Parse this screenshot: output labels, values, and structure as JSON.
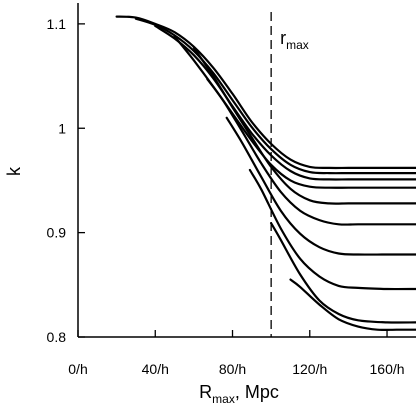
{
  "chart_data": {
    "type": "line",
    "title": "",
    "xlabel_main": "R",
    "xlabel_sub": "max",
    "xlabel_rest": ", Mpc",
    "ylabel": "k",
    "xlim": [
      0,
      175
    ],
    "ylim": [
      0.8,
      1.12
    ],
    "x_ticks": [
      0,
      40,
      80,
      120,
      160
    ],
    "x_tick_labels": [
      "0/h",
      "40/h",
      "80/h",
      "120/h",
      "160/h"
    ],
    "y_ticks": [
      0.8,
      0.9,
      1.0,
      1.1
    ],
    "y_tick_labels": [
      "0.8",
      "0.9",
      "1",
      "1.1"
    ],
    "grid": false,
    "annotation": {
      "text_main": "r",
      "text_sub": "max",
      "x": 100
    },
    "reference_line": {
      "type": "vertical",
      "x": 100,
      "style": "dashed"
    },
    "series": [
      {
        "x": [
          20,
          30,
          40,
          50,
          60,
          70,
          80,
          90,
          100,
          110,
          120,
          130,
          140,
          150,
          160,
          175
        ],
        "y": [
          1.107,
          1.106,
          1.1,
          1.092,
          1.078,
          1.058,
          1.033,
          1.006,
          0.985,
          0.97,
          0.963,
          0.962,
          0.962,
          0.962,
          0.962,
          0.962
        ]
      },
      {
        "x": [
          30,
          40,
          50,
          60,
          70,
          80,
          90,
          100,
          110,
          120,
          130,
          140,
          150,
          160,
          175
        ],
        "y": [
          1.105,
          1.099,
          1.089,
          1.074,
          1.053,
          1.027,
          1.001,
          0.98,
          0.965,
          0.958,
          0.957,
          0.957,
          0.957,
          0.957,
          0.957
        ]
      },
      {
        "x": [
          40,
          50,
          60,
          70,
          80,
          90,
          100,
          110,
          120,
          130,
          140,
          150,
          160,
          175
        ],
        "y": [
          1.098,
          1.086,
          1.07,
          1.048,
          1.021,
          0.995,
          0.974,
          0.959,
          0.952,
          0.951,
          0.951,
          0.951,
          0.951,
          0.951
        ]
      },
      {
        "x": [
          50,
          60,
          70,
          80,
          90,
          100,
          110,
          120,
          130,
          140,
          150,
          160,
          175
        ],
        "y": [
          1.088,
          1.065,
          1.04,
          1.014,
          0.988,
          0.965,
          0.95,
          0.944,
          0.943,
          0.943,
          0.943,
          0.943,
          0.943
        ]
      },
      {
        "x": [
          60,
          70,
          80,
          90,
          100,
          110,
          120,
          130,
          140,
          150,
          160,
          175
        ],
        "y": [
          1.077,
          1.05,
          1.02,
          0.991,
          0.963,
          0.942,
          0.931,
          0.928,
          0.928,
          0.928,
          0.928,
          0.928
        ]
      },
      {
        "x": [
          67,
          75,
          85,
          95,
          105,
          115,
          125,
          135,
          145,
          160,
          175
        ],
        "y": [
          1.047,
          1.027,
          0.997,
          0.966,
          0.939,
          0.921,
          0.912,
          0.908,
          0.908,
          0.908,
          0.908
        ]
      },
      {
        "x": [
          77,
          85,
          95,
          105,
          115,
          125,
          135,
          145,
          160,
          175
        ],
        "y": [
          1.01,
          0.986,
          0.953,
          0.921,
          0.899,
          0.886,
          0.88,
          0.879,
          0.879,
          0.879
        ]
      },
      {
        "x": [
          89,
          95,
          105,
          115,
          125,
          135,
          145,
          160,
          175
        ],
        "y": [
          0.96,
          0.941,
          0.904,
          0.875,
          0.858,
          0.849,
          0.847,
          0.846,
          0.846
        ]
      },
      {
        "x": [
          100,
          105,
          115,
          125,
          135,
          145,
          160,
          175
        ],
        "y": [
          0.909,
          0.893,
          0.86,
          0.835,
          0.822,
          0.816,
          0.814,
          0.814
        ]
      },
      {
        "x": [
          110,
          115,
          125,
          135,
          145,
          155,
          165,
          175
        ],
        "y": [
          0.855,
          0.848,
          0.831,
          0.817,
          0.81,
          0.807,
          0.807,
          0.807
        ]
      }
    ]
  }
}
